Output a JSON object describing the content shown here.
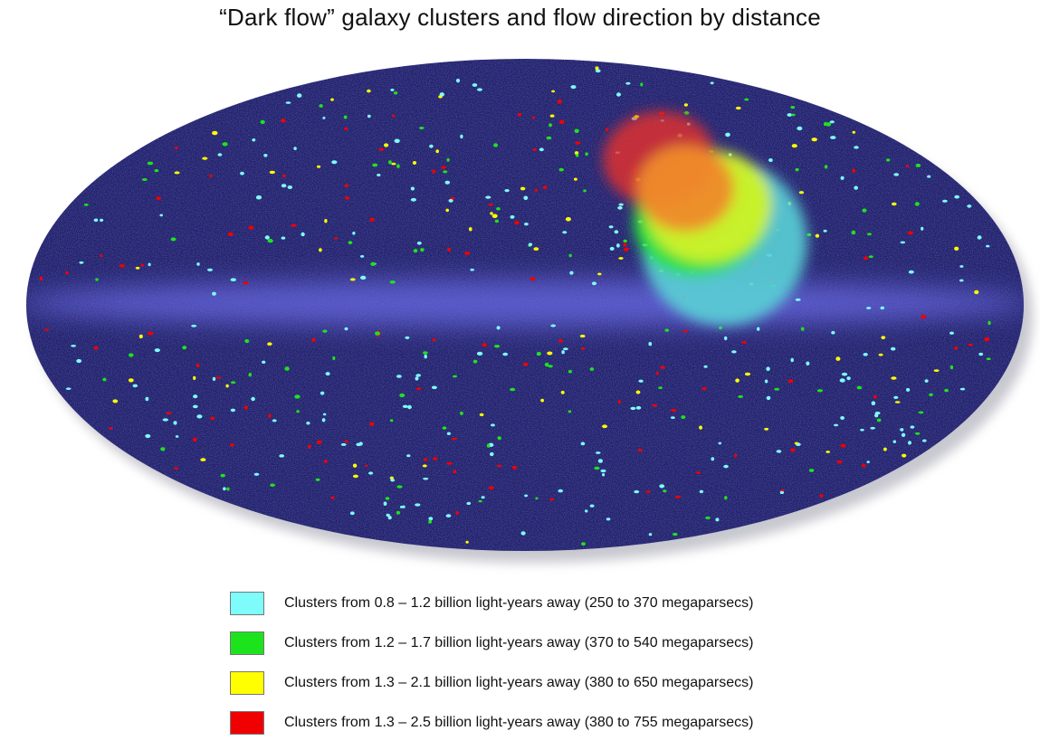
{
  "title": "“Dark flow” galaxy clusters and flow direction by distance",
  "map": {
    "projection": "all-sky ellipse",
    "background_color": "#23236a",
    "band_color": "#6a6ae6"
  },
  "legend": [
    {
      "color": "#7efcfc",
      "label": "Clusters from 0.8 – 1.2 billion light-years away (250 to 370 megaparsecs)"
    },
    {
      "color": "#1de31d",
      "label": "Clusters from 1.2  – 1.7 billion light-years away (370 to 540 megaparsecs)"
    },
    {
      "color": "#ffff00",
      "label": "Clusters from 1.3  –  2.1 billion light-years away (380 to 650 megaparsecs)"
    },
    {
      "color": "#f00000",
      "label": "Clusters from 1.3  –  2.5 billion light-years away (380 to 755 megaparsecs)"
    }
  ],
  "flow_regions": [
    {
      "name": "0.8 – 1.2 billion light-years",
      "color": "#5ad0d6"
    },
    {
      "name": "1.2 – 1.7 billion light-years",
      "color": "#22e03a"
    },
    {
      "name": "1.3 – 2.1 billion light-years",
      "color": "#d6f22a"
    },
    {
      "name": "1.3 – 2.5 billion light-years",
      "color": "#e8302c"
    },
    {
      "name": "overlap",
      "color": "#ee8a2a"
    }
  ]
}
